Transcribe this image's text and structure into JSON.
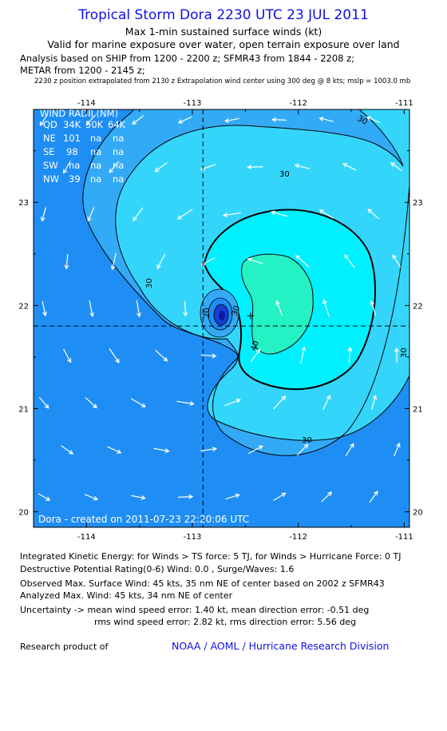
{
  "header": {
    "title": "Tropical Storm Dora 2230 UTC 23 JUL 2011",
    "subtitle1": "Max 1-min sustained surface winds (kt)",
    "subtitle2": "Valid for marine exposure over water, open terrain exposure over land",
    "analysis1": "Analysis based on SHIP from 1200 - 2200 z; SFMR43 from 1844 - 2208 z;",
    "analysis2": "METAR from 1200 - 2145 z;",
    "analysis3": "2230 z position extrapolated from 2130 z Extrapolation wind center using 300 deg @ 8 kts; mslp = 1003.0 mb"
  },
  "map": {
    "lon_ticks": [
      "-114",
      "-113",
      "-112",
      "-111"
    ],
    "lat_ticks": [
      "23",
      "22",
      "21",
      "20"
    ],
    "lon_range": [
      -114.5,
      -110.95
    ],
    "lat_range": [
      19.85,
      23.9
    ],
    "center": {
      "lon": -112.9,
      "lat": 21.8
    },
    "max_wind_marker": {
      "lon": -112.45,
      "lat": 21.9
    },
    "contour_labels": [
      "30",
      "30",
      "30",
      "30",
      "40",
      "20",
      "30"
    ],
    "footer_text": "Dora - created on 2011-07-23 22:20:06 UTC",
    "colors": {
      "lt20": "#1e8ef5",
      "c20_30": "#33aaf6",
      "c30_34": "#33d6fa",
      "c34_40": "#00f0ff",
      "c40_50": "#24f2c4",
      "core": "#0a1aa0",
      "arrow": "#ffffff"
    },
    "wind_radii": {
      "title": "WIND RADII (NM)",
      "header": [
        "QD",
        "34K",
        "50K",
        "64K"
      ],
      "rows": [
        [
          "NE",
          "101",
          "na",
          "na"
        ],
        [
          "SE",
          "98",
          "na",
          "na"
        ],
        [
          "SW",
          "na",
          "na",
          "na"
        ],
        [
          "NW",
          "39",
          "na",
          "na"
        ]
      ]
    }
  },
  "info": {
    "ike": "Integrated Kinetic Energy:  for Winds > TS force: 5 TJ,  for Winds > Hurricane Force: 0 TJ",
    "dpr": "Destructive Potential Rating(0-6)   Wind: 0.0 , Surge/Waves: 1.6",
    "obs": "Observed Max. Surface Wind: 45 kts, 35 nm NE of center based on 2002 z SFMR43",
    "analyzed": "Analyzed Max. Wind: 45 kts, 34 nm NE of center",
    "unc1": "Uncertainty -> mean wind speed error: 1.40 kt,   mean direction error:  -0.51 deg",
    "unc2": "rms wind speed error: 2.82 kt,   rms direction error: 5.56 deg"
  },
  "credits": {
    "left": "Research product of",
    "right": "NOAA / AOML / Hurricane Research Division"
  }
}
